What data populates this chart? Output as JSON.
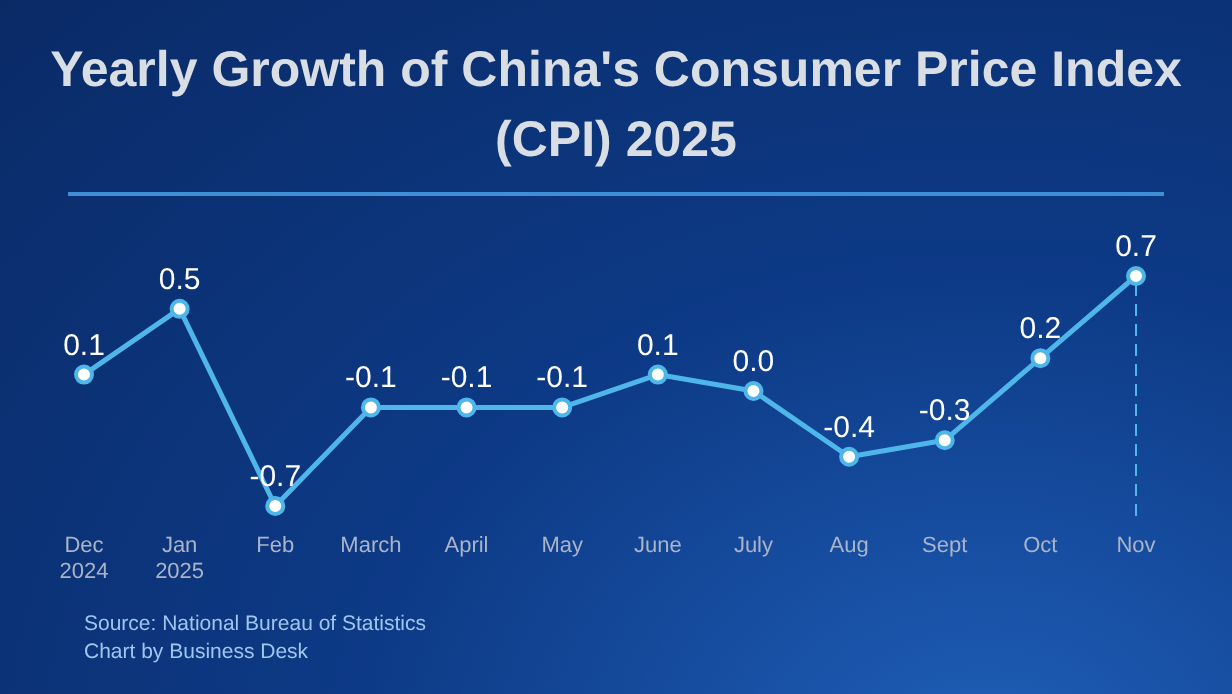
{
  "chart_data": {
    "type": "line",
    "title": "Yearly Growth of China's Consumer Price Index (CPI) 2025",
    "categories": [
      "Dec\n2024",
      "Jan\n2025",
      "Feb",
      "March",
      "April",
      "May",
      "June",
      "July",
      "Aug",
      "Sept",
      "Oct",
      "Nov"
    ],
    "series": [
      {
        "color": "#4fb6ea",
        "values": [
          0.1,
          0.5,
          -0.7,
          -0.1,
          -0.1,
          -0.1,
          0.1,
          0.0,
          -0.4,
          -0.3,
          0.2,
          0.7
        ],
        "value_labels": [
          "0.1",
          "0.5",
          "-0.7",
          "-0.1",
          "-0.1",
          "-0.1",
          "0.1",
          "0.0",
          "-0.4",
          "-0.3",
          "0.2",
          "0.7"
        ]
      }
    ],
    "marker": "circle",
    "line_style": "solid",
    "ref_lines": [
      {
        "axis": "x",
        "value": "Nov",
        "line_style": "dashed",
        "color": "#4fb6ea"
      }
    ],
    "annotations": [
      "Source: National Bureau of Statistics",
      "Chart by Business Desk"
    ]
  }
}
